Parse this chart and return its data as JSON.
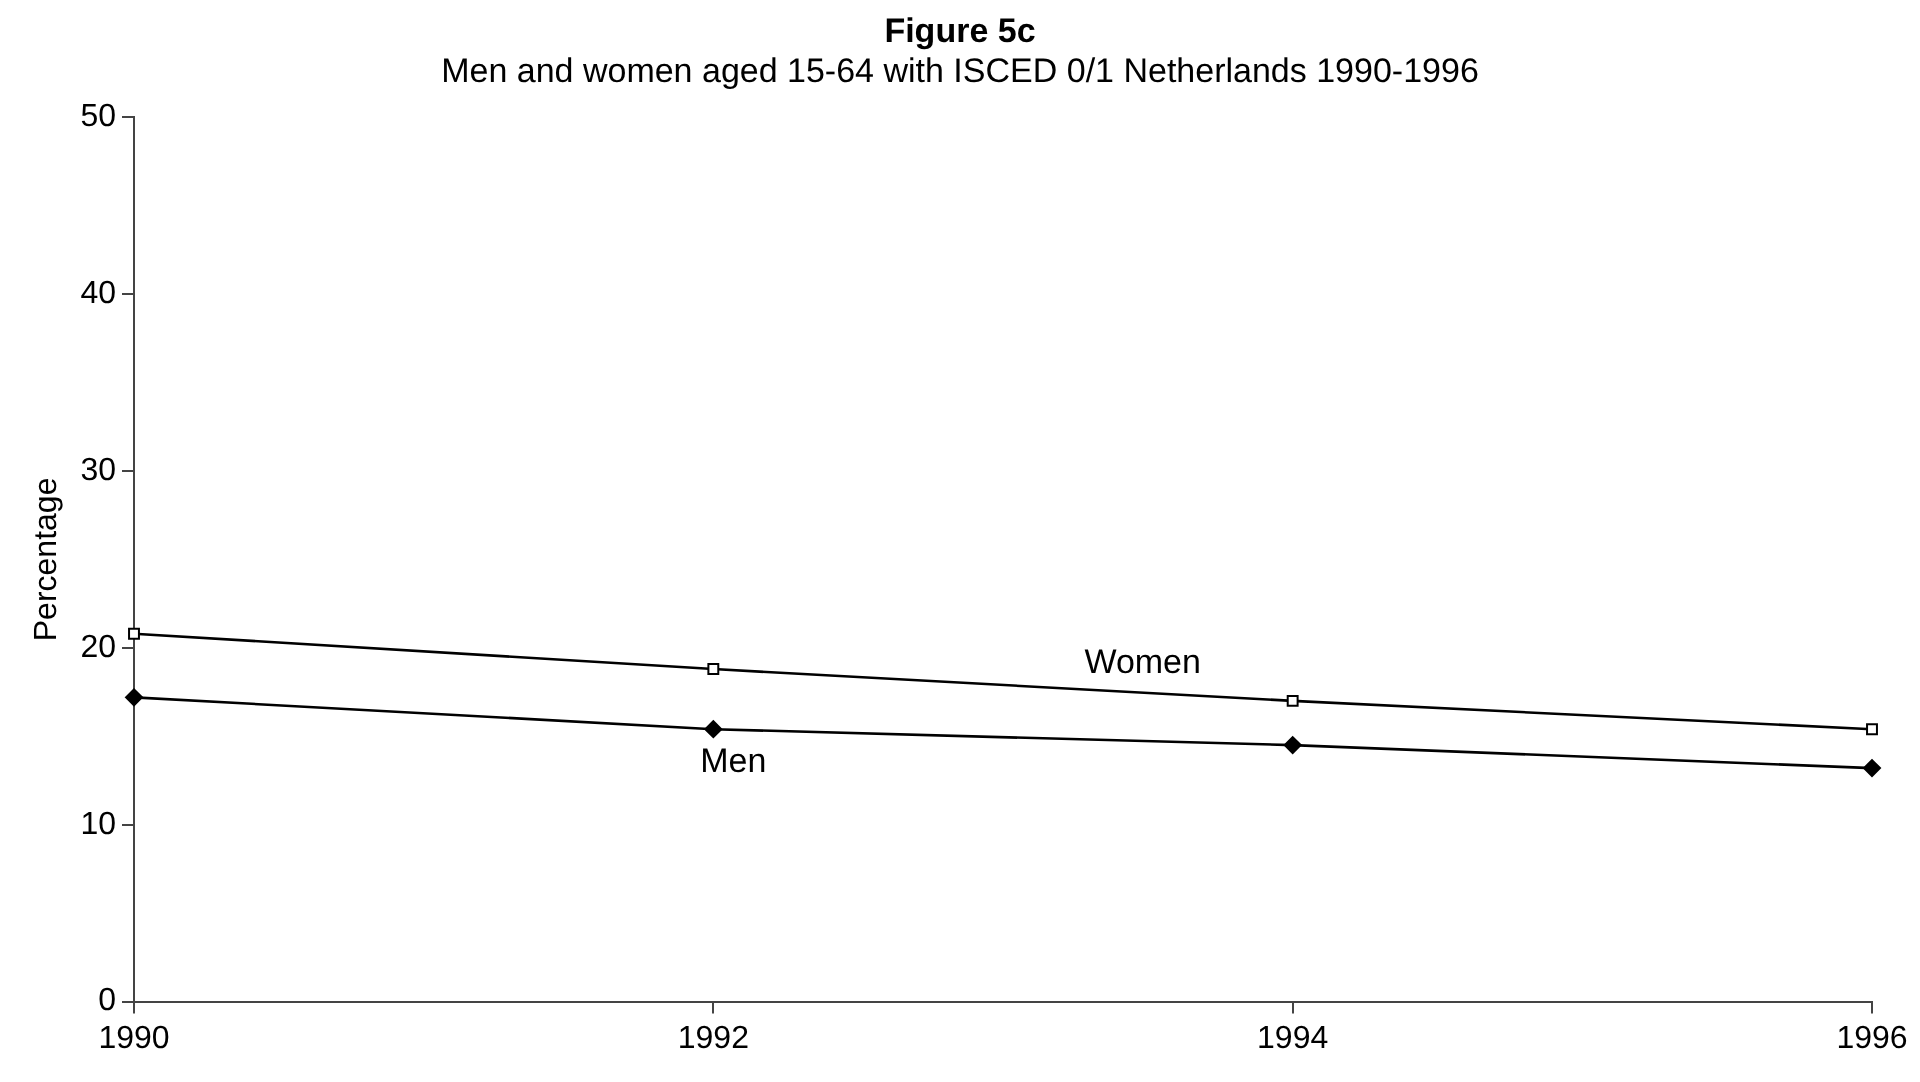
{
  "chart_data": {
    "type": "line",
    "title": "Figure 5c",
    "subtitle": "Men and women aged 15-64 with ISCED 0/1 Netherlands 1990-1996",
    "ylabel": "Percentage",
    "x": [
      1990,
      1992,
      1994,
      1996
    ],
    "xlim": [
      1990,
      1996
    ],
    "xticks": [
      1990,
      1992,
      1994,
      1996
    ],
    "ylim": [
      0,
      50
    ],
    "yticks": [
      0,
      10,
      20,
      30,
      40,
      50
    ],
    "grid": false,
    "series": [
      {
        "name": "Women",
        "color": "#000000",
        "marker": "square",
        "values": [
          20.8,
          18.8,
          17.0,
          15.4
        ]
      },
      {
        "name": "Men",
        "color": "#000000",
        "marker": "diamond",
        "values": [
          17.2,
          15.4,
          14.5,
          13.2
        ]
      }
    ]
  }
}
